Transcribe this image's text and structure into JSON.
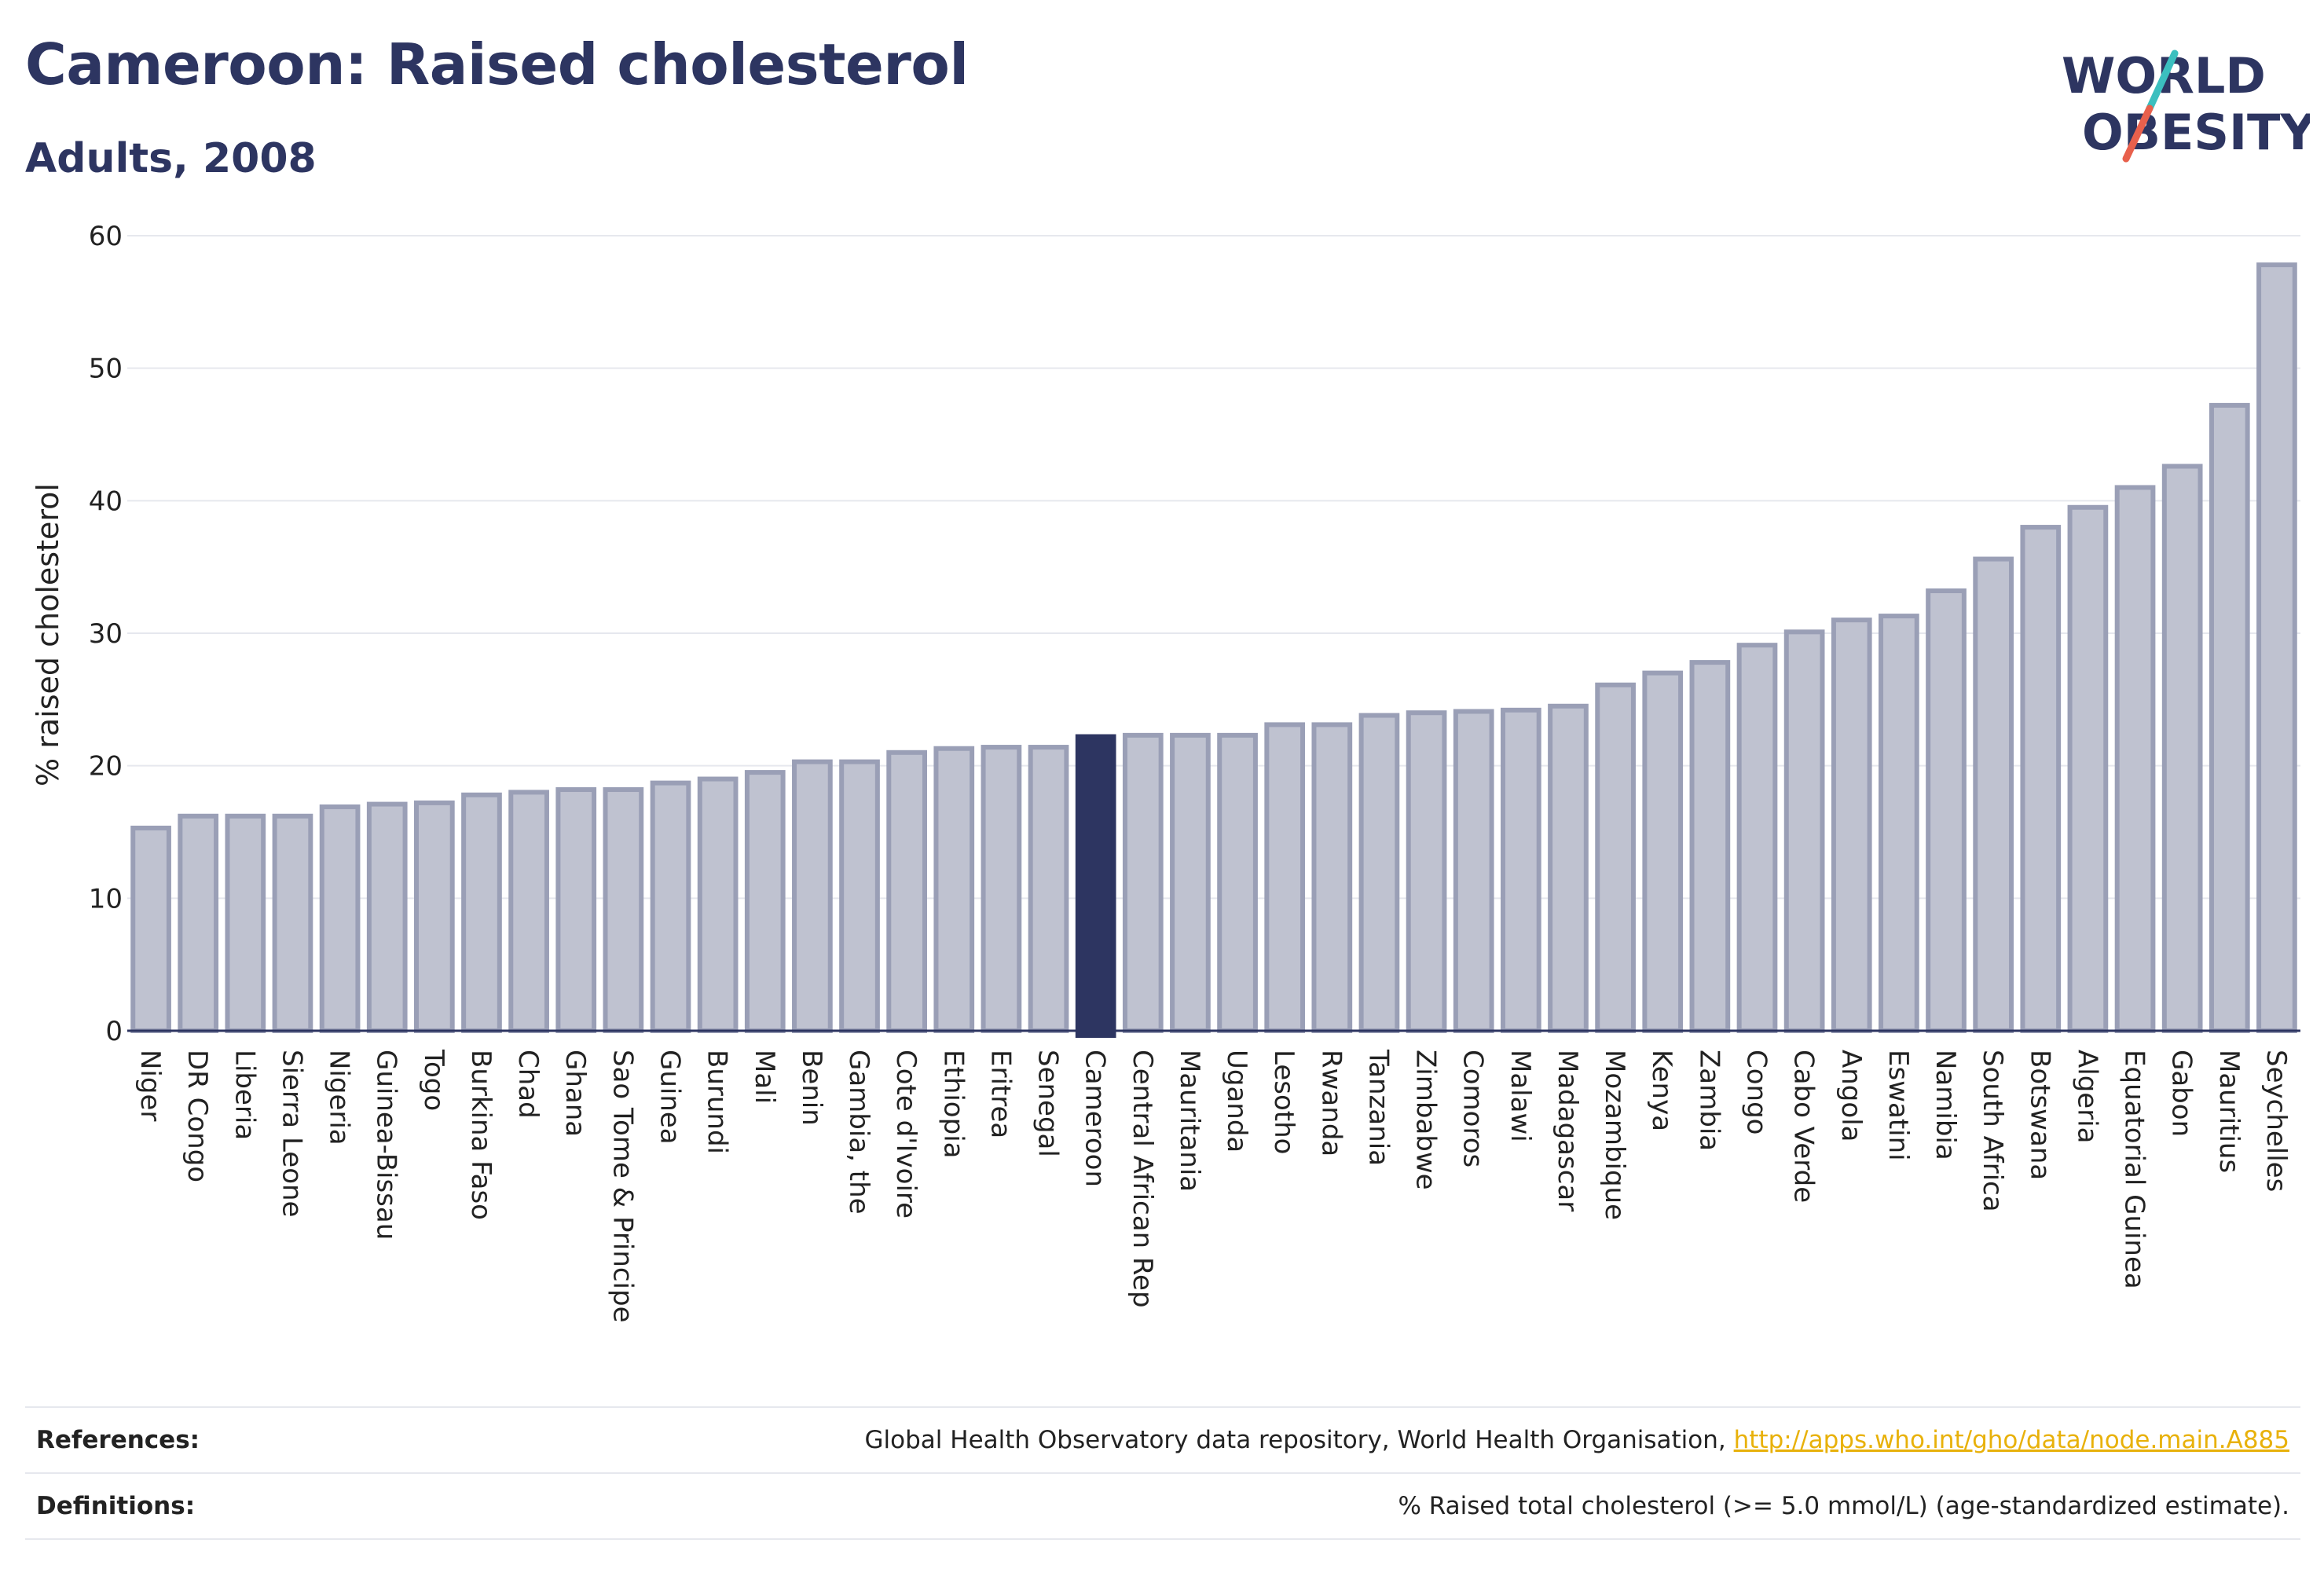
{
  "header": {
    "title": "Cameroon: Raised cholesterol",
    "subtitle": "Adults, 2008"
  },
  "logo": {
    "line1": "WORLD",
    "line2": "OBESITY",
    "slash_colors": [
      "#3bbfbf",
      "#e8604c"
    ]
  },
  "footer": {
    "references_label": "References:",
    "references_text": "Global Health Observatory data repository, World Health Organisation, ",
    "references_link": "http://apps.who.int/gho/data/node.main.A885",
    "definitions_label": "Definitions:",
    "definitions_text": "% Raised total cholesterol (>= 5.0 mmol/L) (age-standardized estimate)."
  },
  "colors": {
    "highlight_bar": "#2d3561",
    "bar_fill": "#bfc2d0",
    "bar_stroke": "#9a9fb6",
    "gridline": "#e6e8ee",
    "text": "#2d3561"
  },
  "chart_data": {
    "type": "bar",
    "ylabel": "% raised cholesterol",
    "xlabel": "",
    "ylim": [
      0,
      60
    ],
    "yticks": [
      0,
      10,
      20,
      30,
      40,
      50,
      60
    ],
    "grid": true,
    "highlight": "Cameroon",
    "categories": [
      "Niger",
      "DR Congo",
      "Liberia",
      "Sierra Leone",
      "Nigeria",
      "Guinea-Bissau",
      "Togo",
      "Burkina Faso",
      "Chad",
      "Ghana",
      "Sao Tome & Principe",
      "Guinea",
      "Burundi",
      "Mali",
      "Benin",
      "Gambia, the",
      "Cote d'Ivoire",
      "Ethiopia",
      "Eritrea",
      "Senegal",
      "Cameroon",
      "Central African Rep",
      "Mauritania",
      "Uganda",
      "Lesotho",
      "Rwanda",
      "Tanzania",
      "Zimbabwe",
      "Comoros",
      "Malawi",
      "Madagascar",
      "Mozambique",
      "Kenya",
      "Zambia",
      "Congo",
      "Cabo Verde",
      "Angola",
      "Eswatini",
      "Namibia",
      "South Africa",
      "Botswana",
      "Algeria",
      "Equatorial Guinea",
      "Gabon",
      "Mauritius",
      "Seychelles"
    ],
    "values": [
      15.3,
      16.2,
      16.2,
      16.2,
      16.9,
      17.1,
      17.2,
      17.8,
      18.0,
      18.2,
      18.2,
      18.7,
      19.0,
      19.5,
      20.3,
      20.3,
      21.0,
      21.3,
      21.4,
      21.4,
      22.2,
      22.3,
      22.3,
      22.3,
      23.1,
      23.1,
      23.8,
      24.0,
      24.1,
      24.2,
      24.5,
      26.1,
      27.0,
      27.8,
      29.1,
      30.1,
      31.0,
      31.3,
      33.2,
      35.6,
      38.0,
      39.5,
      41.0,
      42.6,
      47.2,
      57.8
    ]
  }
}
